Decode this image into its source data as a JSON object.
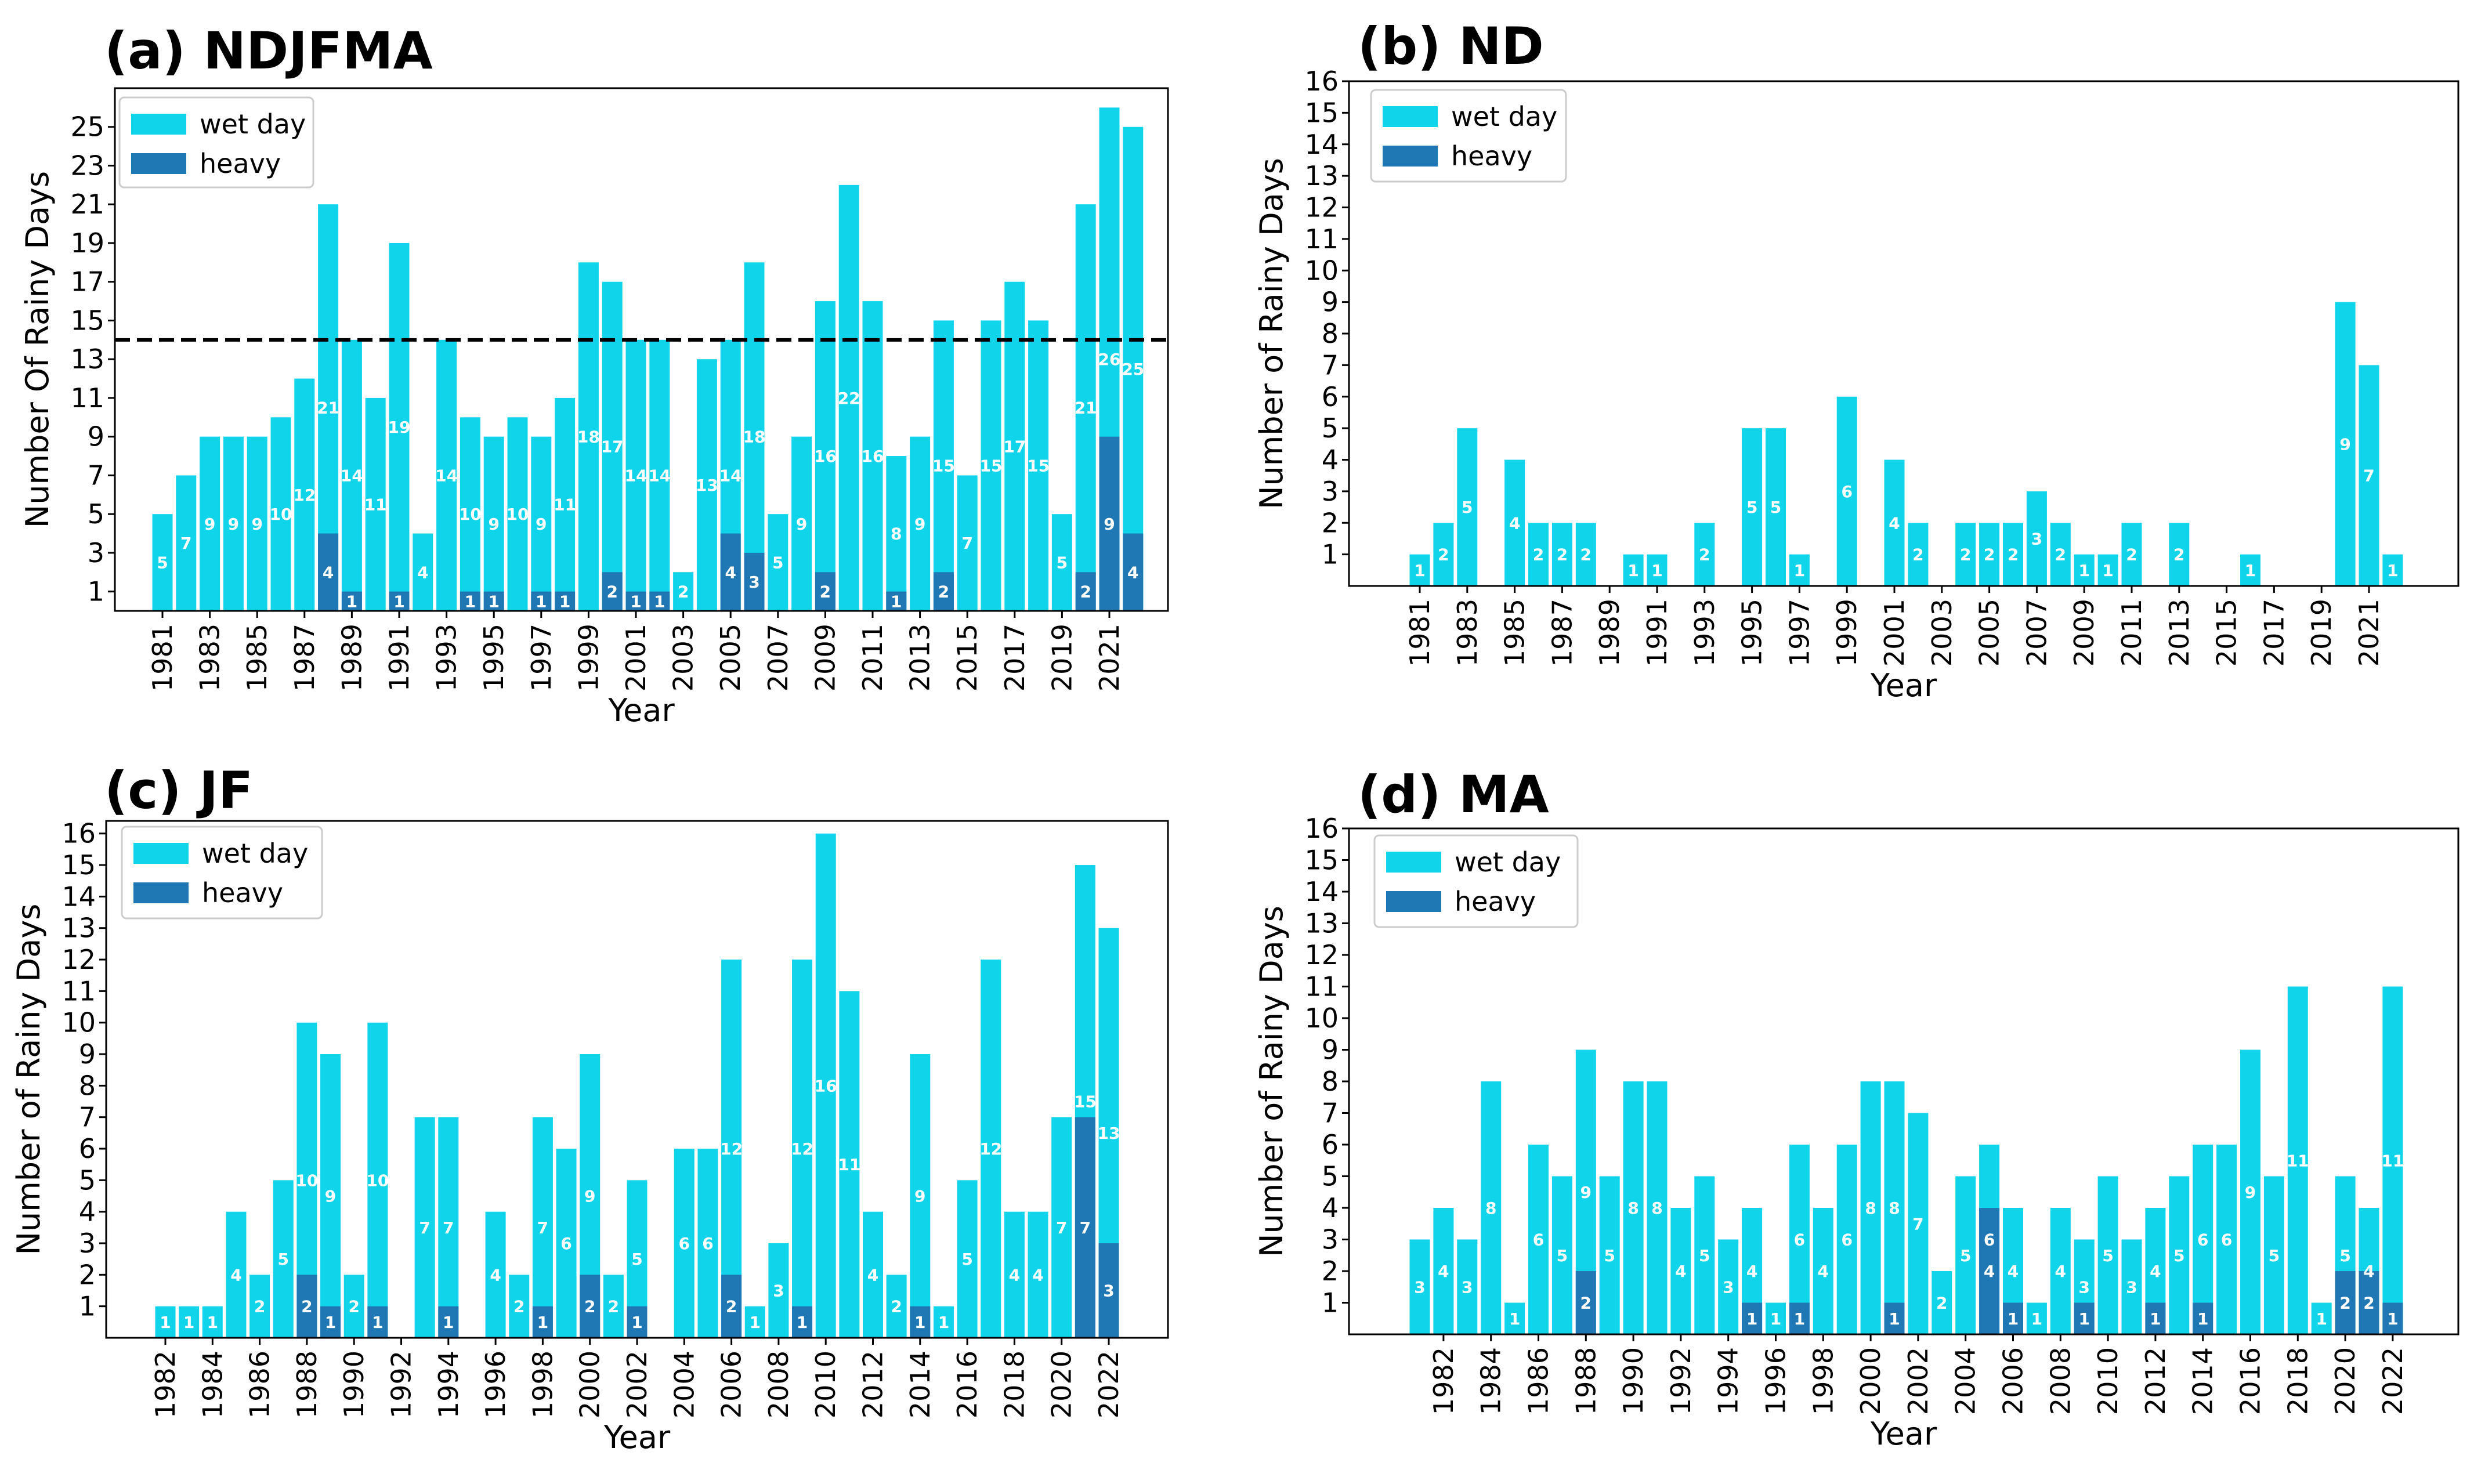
{
  "colors": {
    "wet": "#10D5EA",
    "heavy": "#1F77B4",
    "axis": "#000000",
    "label_text": "#ffffff",
    "legend_border": "#cccccc"
  },
  "legend": {
    "wet_label": "wet day",
    "heavy_label": "heavy"
  },
  "chart_data": [
    {
      "type": "bar",
      "title": "(a) NDJFMA",
      "xlabel": "Year",
      "ylabel": "Number Of Rainy Days",
      "years": [
        1981,
        1982,
        1983,
        1984,
        1985,
        1986,
        1987,
        1988,
        1989,
        1990,
        1991,
        1992,
        1993,
        1994,
        1995,
        1996,
        1997,
        1998,
        1999,
        2000,
        2001,
        2002,
        2003,
        2004,
        2005,
        2006,
        2007,
        2008,
        2009,
        2010,
        2011,
        2012,
        2013,
        2014,
        2015,
        2016,
        2017,
        2018,
        2019,
        2020,
        2021,
        2022
      ],
      "xticks": [
        "1981",
        "1983",
        "1985",
        "1987",
        "1989",
        "1991",
        "1993",
        "1995",
        "1997",
        "1999",
        "2001",
        "2003",
        "2005",
        "2007",
        "2009",
        "2011",
        "2013",
        "2015",
        "2017",
        "2019",
        "2021"
      ],
      "yticks": [
        "1",
        "3",
        "5",
        "7",
        "9",
        "11",
        "13",
        "15",
        "17",
        "19",
        "21",
        "23",
        "25"
      ],
      "ylim": [
        0,
        27
      ],
      "threshold": 14,
      "series": [
        {
          "name": "wet day",
          "values": [
            5,
            7,
            9,
            9,
            9,
            10,
            12,
            21,
            14,
            11,
            19,
            4,
            14,
            10,
            9,
            10,
            9,
            11,
            18,
            17,
            14,
            14,
            2,
            13,
            14,
            18,
            5,
            9,
            16,
            22,
            16,
            8,
            9,
            15,
            7,
            15,
            17,
            15,
            5,
            21,
            26,
            25
          ]
        },
        {
          "name": "heavy",
          "values": [
            0,
            0,
            0,
            0,
            0,
            0,
            0,
            4,
            1,
            0,
            1,
            0,
            0,
            1,
            1,
            0,
            1,
            1,
            0,
            2,
            1,
            1,
            0,
            0,
            4,
            3,
            0,
            0,
            2,
            0,
            0,
            1,
            0,
            2,
            0,
            0,
            0,
            0,
            0,
            2,
            9,
            4
          ]
        }
      ]
    },
    {
      "type": "bar",
      "title": "(b) ND",
      "xlabel": "Year",
      "ylabel": "Number of Rainy Days",
      "years": [
        1981,
        1982,
        1983,
        1984,
        1985,
        1986,
        1987,
        1988,
        1989,
        1990,
        1991,
        1992,
        1993,
        1994,
        1995,
        1996,
        1997,
        1998,
        1999,
        2000,
        2001,
        2002,
        2003,
        2004,
        2005,
        2006,
        2007,
        2008,
        2009,
        2010,
        2011,
        2012,
        2013,
        2014,
        2015,
        2016,
        2017,
        2018,
        2019,
        2020,
        2021,
        2022
      ],
      "xticks": [
        "1981",
        "1983",
        "1985",
        "1987",
        "1989",
        "1991",
        "1993",
        "1995",
        "1997",
        "1999",
        "2001",
        "2003",
        "2005",
        "2007",
        "2009",
        "2011",
        "2013",
        "2015",
        "2017",
        "2019",
        "2021"
      ],
      "yticks": [
        "1",
        "2",
        "3",
        "4",
        "5",
        "6",
        "7",
        "8",
        "9",
        "10",
        "11",
        "12",
        "13",
        "14",
        "15",
        "16"
      ],
      "ylim": [
        0,
        16
      ],
      "series": [
        {
          "name": "wet day",
          "values": [
            1,
            2,
            5,
            0,
            4,
            2,
            2,
            2,
            0,
            1,
            1,
            0,
            2,
            0,
            5,
            5,
            1,
            0,
            6,
            0,
            4,
            2,
            0,
            2,
            2,
            2,
            3,
            2,
            1,
            1,
            2,
            0,
            2,
            0,
            0,
            1,
            0,
            0,
            0,
            9,
            7,
            1
          ]
        },
        {
          "name": "heavy",
          "values": [
            0,
            0,
            0,
            0,
            0,
            0,
            0,
            0,
            0,
            0,
            0,
            0,
            0,
            0,
            0,
            0,
            0,
            0,
            0,
            0,
            0,
            0,
            0,
            0,
            0,
            0,
            0,
            0,
            0,
            0,
            0,
            0,
            0,
            0,
            0,
            0,
            0,
            0,
            0,
            0,
            0,
            0
          ]
        }
      ]
    },
    {
      "type": "bar",
      "title": "(c) JF",
      "xlabel": "Year",
      "ylabel": "Number of Rainy Days",
      "years": [
        1982,
        1983,
        1984,
        1985,
        1986,
        1987,
        1988,
        1989,
        1990,
        1991,
        1992,
        1993,
        1994,
        1995,
        1996,
        1997,
        1998,
        1999,
        2000,
        2001,
        2002,
        2003,
        2004,
        2005,
        2006,
        2007,
        2008,
        2009,
        2010,
        2011,
        2012,
        2013,
        2014,
        2015,
        2016,
        2017,
        2018,
        2019,
        2020,
        2021,
        2022
      ],
      "xticks": [
        "1982",
        "1984",
        "1986",
        "1988",
        "1990",
        "1992",
        "1994",
        "1996",
        "1998",
        "2000",
        "2002",
        "2004",
        "2006",
        "2008",
        "2010",
        "2012",
        "2014",
        "2016",
        "2018",
        "2020",
        "2022"
      ],
      "yticks": [
        "1",
        "2",
        "3",
        "4",
        "5",
        "6",
        "7",
        "8",
        "9",
        "10",
        "11",
        "12",
        "13",
        "14",
        "15",
        "16"
      ],
      "ylim": [
        0,
        16.4
      ],
      "series": [
        {
          "name": "wet day",
          "values": [
            1,
            1,
            1,
            4,
            2,
            5,
            10,
            9,
            2,
            10,
            0,
            7,
            7,
            0,
            4,
            2,
            7,
            6,
            9,
            2,
            5,
            0,
            6,
            6,
            12,
            1,
            3,
            12,
            16,
            11,
            4,
            2,
            9,
            1,
            5,
            12,
            4,
            4,
            7,
            15,
            13
          ]
        },
        {
          "name": "heavy",
          "values": [
            0,
            0,
            0,
            0,
            0,
            0,
            2,
            1,
            0,
            1,
            0,
            0,
            1,
            0,
            0,
            0,
            1,
            0,
            2,
            0,
            1,
            0,
            0,
            0,
            2,
            0,
            0,
            1,
            0,
            0,
            0,
            0,
            1,
            0,
            0,
            0,
            0,
            0,
            0,
            7,
            3
          ]
        }
      ]
    },
    {
      "type": "bar",
      "title": "(d) MA",
      "xlabel": "Year",
      "ylabel": "Number of Rainy Days",
      "years": [
        1981,
        1982,
        1983,
        1984,
        1985,
        1986,
        1987,
        1988,
        1989,
        1990,
        1991,
        1992,
        1993,
        1994,
        1995,
        1996,
        1997,
        1998,
        1999,
        2000,
        2001,
        2002,
        2003,
        2004,
        2005,
        2006,
        2007,
        2008,
        2009,
        2010,
        2011,
        2012,
        2013,
        2014,
        2015,
        2016,
        2017,
        2018,
        2019,
        2020,
        2021,
        2022
      ],
      "xticks": [
        "1982",
        "1984",
        "1986",
        "1988",
        "1990",
        "1992",
        "1994",
        "1996",
        "1998",
        "2000",
        "2002",
        "2004",
        "2006",
        "2008",
        "2010",
        "2012",
        "2014",
        "2016",
        "2018",
        "2020",
        "2022"
      ],
      "yticks": [
        "1",
        "2",
        "3",
        "4",
        "5",
        "6",
        "7",
        "8",
        "9",
        "10",
        "11",
        "12",
        "13",
        "14",
        "15",
        "16"
      ],
      "ylim": [
        0,
        16
      ],
      "series": [
        {
          "name": "wet day",
          "values": [
            3,
            4,
            3,
            8,
            1,
            6,
            5,
            9,
            5,
            8,
            8,
            4,
            5,
            3,
            4,
            1,
            6,
            4,
            6,
            8,
            8,
            7,
            2,
            5,
            6,
            4,
            1,
            4,
            3,
            5,
            3,
            4,
            5,
            6,
            6,
            9,
            5,
            11,
            1,
            5,
            4,
            11
          ]
        },
        {
          "name": "heavy",
          "values": [
            0,
            0,
            0,
            0,
            0,
            0,
            0,
            2,
            0,
            0,
            0,
            0,
            0,
            0,
            1,
            0,
            1,
            0,
            0,
            0,
            1,
            0,
            0,
            0,
            4,
            1,
            0,
            0,
            1,
            0,
            0,
            1,
            0,
            1,
            0,
            0,
            0,
            0,
            0,
            2,
            2,
            1
          ]
        }
      ]
    }
  ]
}
